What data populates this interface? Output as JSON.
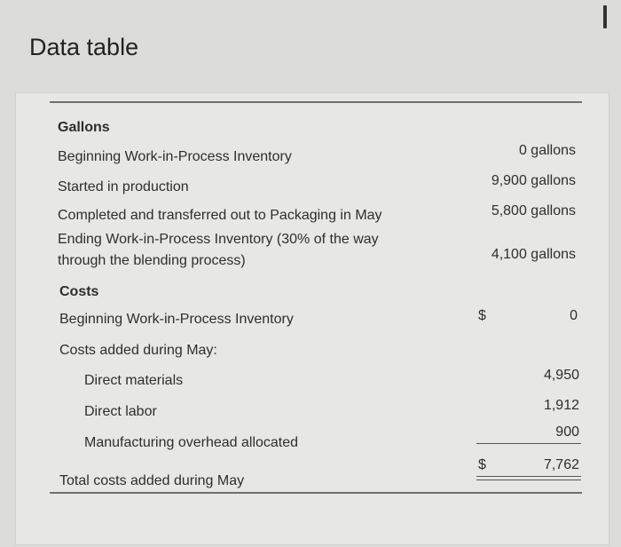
{
  "window": {
    "title": "Data table"
  },
  "gallons": {
    "heading": "Gallons",
    "rows": [
      {
        "label": "Beginning Work-in-Process Inventory",
        "value": "0 gallons"
      },
      {
        "label": "Started in production",
        "value": "9,900 gallons"
      },
      {
        "label": "Completed and transferred out to Packaging in May",
        "value": "5,800 gallons"
      },
      {
        "label_line1": "Ending Work-in-Process Inventory (30% of the way",
        "label_line2": "through the blending process)",
        "value": "4,100 gallons"
      }
    ]
  },
  "costs": {
    "heading": "Costs",
    "currency": "$",
    "beginning": {
      "label": "Beginning Work-in-Process Inventory",
      "value": "0"
    },
    "added_heading": "Costs added during May:",
    "items": [
      {
        "label": "Direct materials",
        "value": "4,950"
      },
      {
        "label": "Direct labor",
        "value": "1,912"
      },
      {
        "label": "Manufacturing overhead allocated",
        "value": "900"
      }
    ],
    "total": {
      "label": "Total costs added during May",
      "value": "7,762"
    }
  }
}
